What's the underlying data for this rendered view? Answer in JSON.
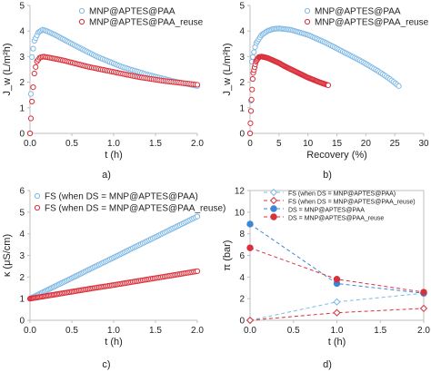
{
  "panel_tags": [
    "a)",
    "b)",
    "c)",
    "d)"
  ],
  "colors": {
    "blue": "#7fb9e6",
    "red": "#d9303b",
    "blue_dark": "#3a86d8"
  },
  "chart_data": [
    {
      "type": "scatter",
      "ylabel": "J_w (L/m²h)",
      "xlabel": "t (h)",
      "xlim": [
        0,
        2
      ],
      "ylim": [
        0,
        5
      ],
      "xticks": [
        "0.0",
        "0.5",
        "1.0",
        "1.5",
        "2.0"
      ],
      "yticks": [
        "0",
        "1",
        "2",
        "3",
        "4",
        "5"
      ],
      "legend": "top-right",
      "series": [
        {
          "name": "MNP@APTES@PAA",
          "marker": "open-circle",
          "color": "#7fb9e6",
          "x": [
            0,
            0.02,
            0.05,
            0.1,
            0.15,
            0.2,
            0.3,
            0.5,
            0.8,
            1.1,
            1.4,
            1.7,
            2.0
          ],
          "y": [
            0,
            2.9,
            3.6,
            3.95,
            4.05,
            4.0,
            3.85,
            3.5,
            3.0,
            2.6,
            2.3,
            2.05,
            1.85
          ]
        },
        {
          "name": "MNP@APTES@PAA_reuse",
          "marker": "open-circle",
          "color": "#d9303b",
          "x": [
            0,
            0.02,
            0.05,
            0.08,
            0.12,
            0.16,
            0.25,
            0.4,
            0.7,
            1.0,
            1.3,
            1.6,
            2.0
          ],
          "y": [
            0,
            1.1,
            2.3,
            2.8,
            2.97,
            3.0,
            2.95,
            2.85,
            2.6,
            2.4,
            2.2,
            2.05,
            1.9
          ]
        }
      ]
    },
    {
      "type": "scatter",
      "ylabel": "J_w (L/m²h)",
      "xlabel": "Recovery (%)",
      "xlim": [
        0,
        30
      ],
      "ylim": [
        0,
        5
      ],
      "xticks": [
        "0",
        "5",
        "10",
        "15",
        "20",
        "25",
        "30"
      ],
      "yticks": [
        "0",
        "1",
        "2",
        "3",
        "4",
        "5"
      ],
      "legend": "top-right",
      "series": [
        {
          "name": "MNP@APTES@PAA",
          "marker": "open-circle",
          "color": "#7fb9e6",
          "x": [
            0,
            0.3,
            1,
            2,
            3,
            4,
            5,
            7,
            10,
            13,
            16,
            19,
            22,
            24,
            25.7
          ],
          "y": [
            0,
            2.8,
            3.5,
            3.85,
            4.0,
            4.08,
            4.1,
            4.05,
            3.85,
            3.55,
            3.2,
            2.85,
            2.45,
            2.15,
            1.85
          ]
        },
        {
          "name": "MNP@APTES@PAA_reuse",
          "marker": "open-circle",
          "color": "#d9303b",
          "x": [
            0,
            0.2,
            0.5,
            1,
            1.5,
            2,
            3,
            4,
            5,
            6,
            8,
            10,
            12,
            13.5
          ],
          "y": [
            0,
            1.1,
            2.3,
            2.8,
            2.98,
            3.0,
            2.95,
            2.85,
            2.75,
            2.62,
            2.4,
            2.18,
            2.0,
            1.88
          ]
        }
      ]
    },
    {
      "type": "scatter",
      "ylabel": "κ (μS/cm)",
      "xlabel": "t (h)",
      "xlim": [
        0,
        2
      ],
      "ylim": [
        0,
        6
      ],
      "xticks": [
        "0.0",
        "0.5",
        "1.0",
        "1.5",
        "2.0"
      ],
      "yticks": [
        "0",
        "1",
        "2",
        "3",
        "4",
        "5",
        "6"
      ],
      "legend": "top-left",
      "series": [
        {
          "name": "FS (when DS = MNP@APTES@PAA)",
          "marker": "open-circle",
          "color": "#7fb9e6",
          "x": [
            0,
            0.25,
            0.5,
            0.75,
            1.0,
            1.25,
            1.5,
            1.75,
            2.0
          ],
          "y": [
            1.0,
            1.48,
            1.95,
            2.43,
            2.9,
            3.38,
            3.85,
            4.33,
            4.8
          ]
        },
        {
          "name": "FS (when DS = MNP@APTES@PAA_reuse)",
          "marker": "open-circle",
          "color": "#d9303b",
          "x": [
            0,
            0.25,
            0.5,
            0.75,
            1.0,
            1.25,
            1.5,
            1.75,
            2.0
          ],
          "y": [
            1.0,
            1.16,
            1.32,
            1.48,
            1.63,
            1.79,
            1.95,
            2.11,
            2.27
          ]
        }
      ]
    },
    {
      "type": "line",
      "ylabel": "π (bar)",
      "xlabel": "t (h)",
      "xlim": [
        0,
        2
      ],
      "ylim": [
        0,
        12
      ],
      "xticks": [
        "0.0",
        "0.5",
        "1.0",
        "1.5",
        "2.0"
      ],
      "yticks": [
        "0",
        "2",
        "4",
        "6",
        "8",
        "10",
        "12"
      ],
      "legend": "top-right",
      "series": [
        {
          "name": "FS (when DS = MNP@APTES@PAA)",
          "marker": "open-diamond",
          "color": "#7fb9e6",
          "x": [
            0,
            1,
            2
          ],
          "y": [
            0,
            1.7,
            2.5
          ]
        },
        {
          "name": "FS (when DS = MNP@APTES@PAA_reuse)",
          "marker": "open-diamond",
          "color": "#d9303b",
          "x": [
            0,
            1,
            2
          ],
          "y": [
            0,
            0.7,
            1.1
          ]
        },
        {
          "name": "DS = MNP@APTES@PAA",
          "marker": "filled-circle",
          "color": "#3a86d8",
          "x": [
            0,
            1,
            2
          ],
          "y": [
            8.9,
            3.4,
            2.5
          ]
        },
        {
          "name": "DS = MNP@APTES@PAA_reuse",
          "marker": "filled-circle",
          "color": "#d9303b",
          "x": [
            0,
            1,
            2
          ],
          "y": [
            6.7,
            3.8,
            2.6
          ]
        }
      ]
    }
  ]
}
